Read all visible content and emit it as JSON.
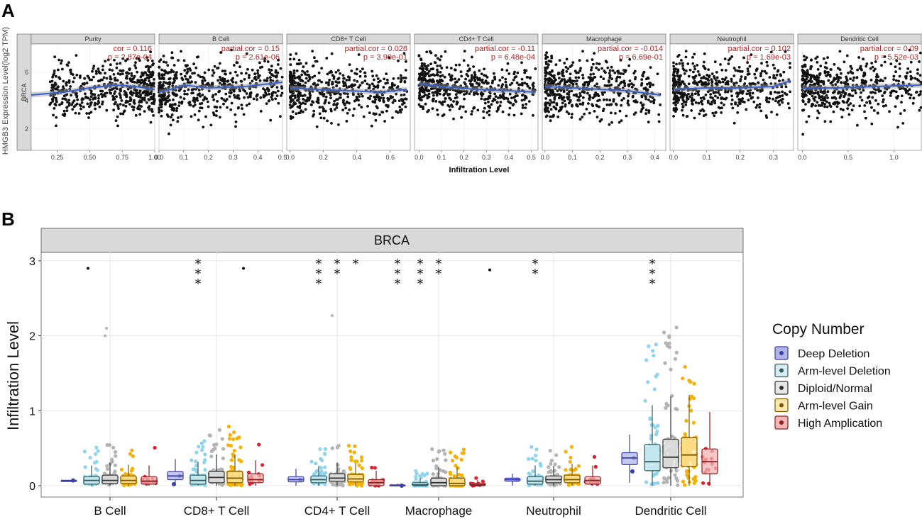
{
  "chart_data": [
    {
      "type": "scatter",
      "panel_label": "A",
      "ylabel": "HMGB3 Expression Level(log2 TPM)",
      "xlabel": "Infiltration Level",
      "row_label": "BRCA",
      "ylim": [
        0.5,
        8
      ],
      "yticks": [
        "2",
        "4",
        "6"
      ],
      "facets": [
        {
          "name": "Purity",
          "cor_text": "cor = 0.116",
          "p_text": "p = 2.87e-04",
          "xlim": [
            0.05,
            1.0
          ],
          "xticks": [
            0.25,
            0.5,
            0.75,
            1.0
          ],
          "xtick_labels": [
            "0.25",
            "0.50",
            "0.75",
            "1.00"
          ],
          "trend": [
            [
              0.05,
              4.4
            ],
            [
              0.3,
              4.6
            ],
            [
              0.5,
              4.9
            ],
            [
              0.7,
              5.1
            ],
            [
              0.85,
              5.0
            ],
            [
              1.0,
              4.8
            ]
          ]
        },
        {
          "name": "B Cell",
          "cor_text": "partial.cor = 0.15",
          "p_text": "p = 2.61e-06",
          "xlim": [
            0.0,
            0.5
          ],
          "xticks": [
            0.0,
            0.1,
            0.2,
            0.3,
            0.4,
            0.5
          ],
          "xtick_labels": [
            "0.0",
            "0.1",
            "0.2",
            "0.3",
            "0.4",
            "0.5"
          ],
          "trend": [
            [
              0.0,
              4.6
            ],
            [
              0.05,
              4.8
            ],
            [
              0.1,
              5.1
            ],
            [
              0.2,
              4.9
            ],
            [
              0.35,
              5.0
            ],
            [
              0.5,
              5.3
            ]
          ]
        },
        {
          "name": "CD8+ T Cell",
          "cor_text": "partial.cor = 0.028",
          "p_text": "p = 3.90e-01",
          "xlim": [
            -0.02,
            0.72
          ],
          "xticks": [
            0.0,
            0.2,
            0.4,
            0.6
          ],
          "xtick_labels": [
            "0.0",
            "0.2",
            "0.4",
            "0.6"
          ],
          "trend": [
            [
              0.0,
              4.9
            ],
            [
              0.15,
              4.8
            ],
            [
              0.35,
              4.7
            ],
            [
              0.55,
              4.6
            ],
            [
              0.7,
              4.8
            ]
          ]
        },
        {
          "name": "CD4+ T Cell",
          "cor_text": "partial.cor = -0.11",
          "p_text": "p = 6.48e-04",
          "xlim": [
            -0.02,
            0.53
          ],
          "xticks": [
            0.0,
            0.1,
            0.2,
            0.3,
            0.4,
            0.5
          ],
          "xtick_labels": [
            "0.0",
            "0.1",
            "0.2",
            "0.3",
            "0.4",
            "0.5"
          ],
          "trend": [
            [
              0.0,
              5.2
            ],
            [
              0.1,
              5.0
            ],
            [
              0.25,
              4.8
            ],
            [
              0.4,
              4.7
            ],
            [
              0.52,
              4.6
            ]
          ]
        },
        {
          "name": "Macrophage",
          "cor_text": "partial.cor = -0.014",
          "p_text": "p = 6.69e-01",
          "xlim": [
            -0.01,
            0.44
          ],
          "xticks": [
            0.0,
            0.1,
            0.2,
            0.3,
            0.4
          ],
          "xtick_labels": [
            "0.0",
            "0.1",
            "0.2",
            "0.3",
            "0.4"
          ],
          "trend": [
            [
              0.0,
              5.0
            ],
            [
              0.1,
              4.9
            ],
            [
              0.2,
              4.8
            ],
            [
              0.3,
              4.7
            ],
            [
              0.42,
              4.4
            ]
          ]
        },
        {
          "name": "Neutrophil",
          "cor_text": "partial.cor = 0.102",
          "p_text": "p = 1.69e-03",
          "xlim": [
            -0.01,
            0.36
          ],
          "xticks": [
            0.0,
            0.1,
            0.2,
            0.3
          ],
          "xtick_labels": [
            "0.0",
            "0.1",
            "0.2",
            "0.3"
          ],
          "trend": [
            [
              0.0,
              4.8
            ],
            [
              0.1,
              4.9
            ],
            [
              0.2,
              4.9
            ],
            [
              0.3,
              5.0
            ],
            [
              0.35,
              5.4
            ]
          ]
        },
        {
          "name": "Dendritic Cell",
          "cor_text": "partial.cor = 0.09",
          "p_text": "p = 5.52e-03",
          "xlim": [
            -0.05,
            1.3
          ],
          "xticks": [
            0.0,
            0.5,
            1.0
          ],
          "xtick_labels": [
            "0.0",
            "0.5",
            "1.0"
          ],
          "trend": [
            [
              0.0,
              4.9
            ],
            [
              0.4,
              4.9
            ],
            [
              0.8,
              5.0
            ],
            [
              1.3,
              5.1
            ]
          ]
        }
      ]
    },
    {
      "type": "box",
      "panel_label": "B",
      "title": "BRCA",
      "ylabel": "Infiltration Level",
      "ylim": [
        -0.05,
        3.05
      ],
      "yticks": [
        "0",
        "1",
        "2",
        "3"
      ],
      "categories": [
        "B Cell",
        "CD8+ T Cell",
        "CD4+ T Cell",
        "Macrophage",
        "Neutrophil",
        "Dendritic Cell"
      ],
      "legend_title": "Copy Number",
      "series": [
        {
          "name": "Deep Deletion",
          "color": "#3b3fa8",
          "fill": "#b3b4e6"
        },
        {
          "name": "Arm-level Deletion",
          "color": "#2f5b58",
          "fill": "#d6ecf2",
          "point": "#8fd3ec"
        },
        {
          "name": "Diploid/Normal",
          "color": "#333333",
          "fill": "#e6e6e6",
          "point": "#b3b3b3"
        },
        {
          "name": "Arm-level Gain",
          "color": "#7a5a00",
          "fill": "#fde9ad",
          "point": "#f5b000"
        },
        {
          "name": "High Amplication",
          "color": "#8a1f1f",
          "fill": "#f2b6b6",
          "point": "#e02030"
        }
      ],
      "boxes": [
        [
          [
            0.07,
            0.07,
            0.07
          ],
          [
            0.02,
            0.07,
            0.12
          ],
          [
            0.03,
            0.07,
            0.14
          ],
          [
            0.03,
            0.07,
            0.13
          ],
          [
            0.02,
            0.06,
            0.12
          ]
        ],
        [
          [
            0.08,
            0.13,
            0.19
          ],
          [
            0.02,
            0.07,
            0.14
          ],
          [
            0.04,
            0.11,
            0.19
          ],
          [
            0.04,
            0.1,
            0.19
          ],
          [
            0.04,
            0.08,
            0.16
          ]
        ],
        [
          [
            0.05,
            0.08,
            0.12
          ],
          [
            0.04,
            0.08,
            0.13
          ],
          [
            0.06,
            0.1,
            0.16
          ],
          [
            0.05,
            0.09,
            0.15
          ],
          [
            0.0,
            0.04,
            0.08
          ]
        ],
        [
          [
            0.0,
            0.0,
            0.01
          ],
          [
            0.0,
            0.01,
            0.04
          ],
          [
            0.0,
            0.04,
            0.1
          ],
          [
            0.0,
            0.03,
            0.1
          ],
          [
            0.0,
            0.01,
            0.03
          ]
        ],
        [
          [
            0.06,
            0.08,
            0.1
          ],
          [
            0.02,
            0.06,
            0.12
          ],
          [
            0.04,
            0.08,
            0.13
          ],
          [
            0.04,
            0.08,
            0.14
          ],
          [
            0.02,
            0.07,
            0.12
          ]
        ],
        [
          [
            0.28,
            0.37,
            0.44
          ],
          [
            0.2,
            0.32,
            0.55
          ],
          [
            0.24,
            0.38,
            0.62
          ],
          [
            0.26,
            0.41,
            0.64
          ],
          [
            0.16,
            0.32,
            0.49
          ]
        ]
      ],
      "significance": [
        [
          "",
          "",
          "",
          "",
          ""
        ],
        [
          "",
          "***",
          "",
          "",
          ""
        ],
        [
          "",
          "***",
          "**",
          "*",
          ""
        ],
        [
          "***",
          "***",
          "**",
          "",
          ""
        ],
        [
          "",
          "**",
          "",
          "",
          ""
        ],
        [
          "",
          "***",
          "",
          "",
          ""
        ]
      ]
    }
  ]
}
